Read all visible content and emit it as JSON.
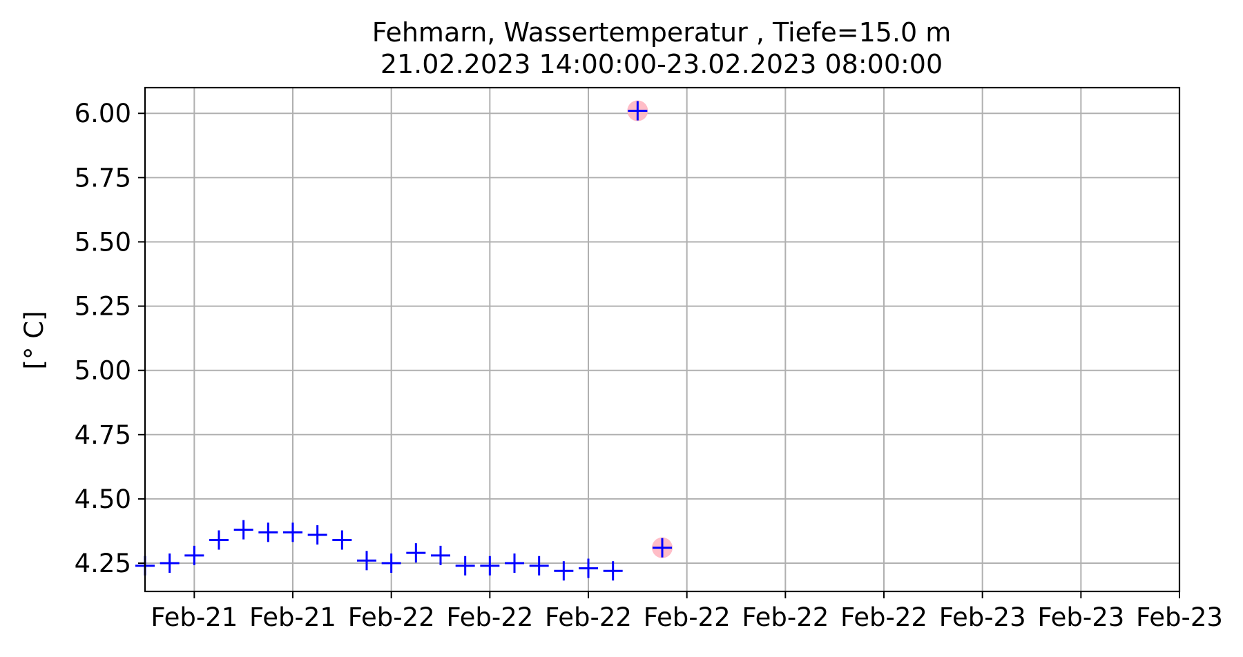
{
  "chart_data": {
    "type": "scatter",
    "title": "Fehmarn, Wassertemperatur , Tiefe=15.0 m",
    "subtitle": "21.02.2023 14:00:00-23.02.2023 08:00:00",
    "xlabel": "",
    "ylabel": "[° C]",
    "grid": true,
    "x_unit": "hours since 21.02.2023 14:00:00",
    "xlim": [
      0,
      42
    ],
    "ylim": [
      4.14,
      6.1
    ],
    "x_ticks": [
      2,
      6,
      10,
      14,
      18,
      22,
      26,
      30,
      34,
      38,
      42
    ],
    "x_tick_labels": [
      "Feb-21",
      "Feb-21",
      "Feb-22",
      "Feb-22",
      "Feb-22",
      "Feb-22",
      "Feb-22",
      "Feb-22",
      "Feb-23",
      "Feb-23",
      "Feb-23"
    ],
    "y_ticks": [
      4.25,
      4.5,
      4.75,
      5.0,
      5.25,
      5.5,
      5.75,
      6.0
    ],
    "y_tick_labels": [
      "4.25",
      "4.50",
      "4.75",
      "5.00",
      "5.25",
      "5.50",
      "5.75",
      "6.00"
    ],
    "series": [
      {
        "marker": "+",
        "color": "#0000ff",
        "points": [
          [
            0,
            4.24
          ],
          [
            1,
            4.25
          ],
          [
            2,
            4.28
          ],
          [
            3,
            4.34
          ],
          [
            4,
            4.38
          ],
          [
            5,
            4.37
          ],
          [
            6,
            4.37
          ],
          [
            7,
            4.36
          ],
          [
            8,
            4.34
          ],
          [
            9,
            4.26
          ],
          [
            10,
            4.25
          ],
          [
            11,
            4.29
          ],
          [
            12,
            4.28
          ],
          [
            13,
            4.24
          ],
          [
            14,
            4.24
          ],
          [
            15,
            4.25
          ],
          [
            16,
            4.24
          ],
          [
            17,
            4.22
          ],
          [
            18,
            4.23
          ],
          [
            19,
            4.22
          ],
          [
            20,
            6.01
          ],
          [
            21,
            4.31
          ]
        ]
      }
    ],
    "flagged_points": [
      [
        20,
        6.01
      ],
      [
        21,
        4.31
      ]
    ],
    "flag_color": "#ffb6c1"
  }
}
